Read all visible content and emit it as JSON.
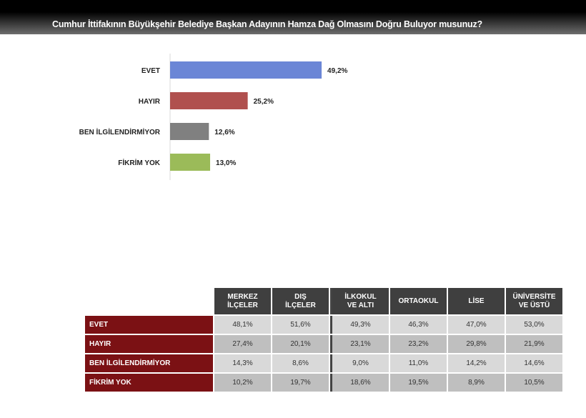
{
  "title": "Cumhur İttifakının Büyükşehir Belediye Başkan Adayının Hamza Dağ Olmasını Doğru Buluyor musunuz?",
  "chart_data": {
    "type": "bar",
    "orientation": "horizontal",
    "categories": [
      "EVET",
      "HAYIR",
      "BEN İLGİLENDİRMİYOR",
      "FİKRİM YOK"
    ],
    "values": [
      49.2,
      25.2,
      12.6,
      13.0
    ],
    "value_labels": [
      "49,2%",
      "25,2%",
      "12,6%",
      "13,0%"
    ],
    "colors": [
      "#6b86d6",
      "#b0504e",
      "#808080",
      "#9bbb59"
    ],
    "grid": false
  },
  "table": {
    "headers": [
      "MERKEZ\nİLÇELER",
      "DIŞ\nİLÇELER",
      "İLKOKUL\nVE ALTI",
      "ORTAOKUL",
      "LİSE",
      "ÜNİVERSİTE\nVE ÜSTÜ"
    ],
    "rows": [
      {
        "label": "EVET",
        "cells": [
          "48,1%",
          "51,6%",
          "49,3%",
          "46,3%",
          "47,0%",
          "53,0%"
        ]
      },
      {
        "label": "HAYIR",
        "cells": [
          "27,4%",
          "20,1%",
          "23,1%",
          "23,2%",
          "29,8%",
          "21,9%"
        ]
      },
      {
        "label": "BEN İLGİLENDİRMİYOR",
        "cells": [
          "14,3%",
          "8,6%",
          "9,0%",
          "11,0%",
          "14,2%",
          "14,6%"
        ]
      },
      {
        "label": "FİKRİM YOK",
        "cells": [
          "10,2%",
          "19,7%",
          "18,6%",
          "19,5%",
          "8,9%",
          "10,5%"
        ]
      }
    ],
    "colors": {
      "row_label_bg": "#7b1114",
      "header_bg": "#3f3f3f"
    }
  }
}
